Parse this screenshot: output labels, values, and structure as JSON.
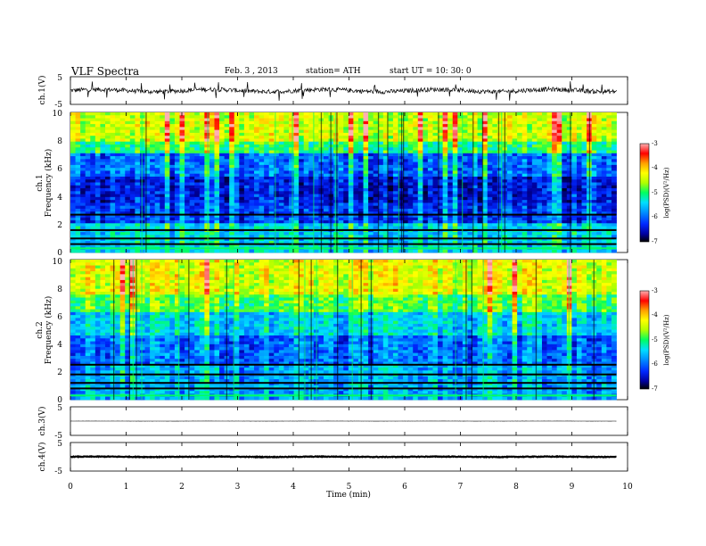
{
  "header": {
    "title": "VLF  Spectra",
    "date": "Feb. 3  , 2013",
    "station": "station= ATH",
    "start": "start  UT  =   10: 30: 0"
  },
  "colors": {
    "scale": [
      "#000000",
      "#0000a0",
      "#0028ff",
      "#0090ff",
      "#00e0ff",
      "#00ff60",
      "#b0ff00",
      "#ffff00",
      "#ffa000",
      "#ff0000",
      "#ffb0b0"
    ]
  },
  "chart_data": [
    {
      "type": "line",
      "panel": "ch1-waveform",
      "ylabel": "ch.1(V)",
      "ylim": [
        -5,
        5
      ],
      "yticks": [
        "5",
        "-5"
      ],
      "xlim": [
        0,
        10
      ],
      "baseline": 0,
      "amplitude": 1.6
    },
    {
      "type": "heatmap",
      "panel": "ch1-spectrogram",
      "ylabel": "ch.1",
      "ylabel2": "Frequency  (kHz)",
      "ylim": [
        0,
        10
      ],
      "yticks": [
        "0",
        "2",
        "4",
        "6",
        "8",
        "10"
      ],
      "xlim": [
        0,
        9.8
      ],
      "colorbar": {
        "label": "log(PSD)(V²/Hz)",
        "range": [
          -7,
          -3
        ],
        "ticks": [
          "-3",
          "-4",
          "-5",
          "-6",
          "-7"
        ]
      }
    },
    {
      "type": "heatmap",
      "panel": "ch2-spectrogram",
      "ylabel": "ch.2",
      "ylabel2": "Frequency  (kHz)",
      "ylim": [
        0,
        10
      ],
      "yticks": [
        "0",
        "2",
        "4",
        "6",
        "8",
        "10"
      ],
      "xlim": [
        0,
        9.8
      ],
      "colorbar": {
        "label": "log(PSD)(V²/Hz)",
        "range": [
          -7,
          -3
        ],
        "ticks": [
          "-3",
          "-4",
          "-5",
          "-6",
          "-7"
        ]
      }
    },
    {
      "type": "line",
      "panel": "ch3-waveform",
      "ylabel": "ch.3(V)",
      "ylim": [
        -5,
        5
      ],
      "yticks": [
        "5",
        "-5"
      ],
      "xlim": [
        0,
        10
      ],
      "baseline": 0,
      "amplitude": 0.05
    },
    {
      "type": "line",
      "panel": "ch4-waveform",
      "ylabel": "ch.4(V)",
      "ylim": [
        -5,
        5
      ],
      "yticks": [
        "5",
        "-5"
      ],
      "xlim": [
        0,
        10
      ],
      "baseline": 0,
      "amplitude": 0.25
    }
  ],
  "xaxis": {
    "label": "Time  (min)",
    "range": [
      0,
      10
    ],
    "ticks": [
      "0",
      "1",
      "2",
      "3",
      "4",
      "5",
      "6",
      "7",
      "8",
      "9",
      "10"
    ]
  }
}
